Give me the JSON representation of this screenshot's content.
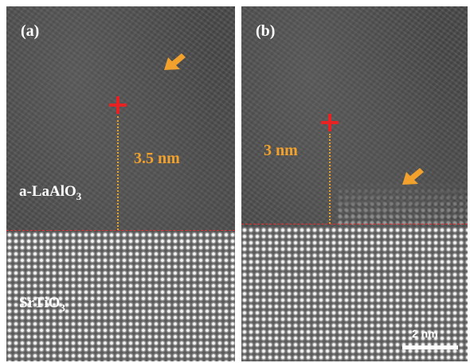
{
  "panels": [
    {
      "label": "(a)",
      "thickness": "3.5 nm",
      "layer_label_main": "a-LaAlO",
      "layer_label_sub": "3",
      "substrate_label_main": "SrTiO",
      "substrate_label_sub": "3"
    },
    {
      "label": "(b)",
      "thickness": "3 nm",
      "scale_bar": "2 nm"
    }
  ],
  "colors": {
    "marker": "#e82222",
    "annotation": "#f2a22c",
    "interface_line": "#e03030"
  },
  "icons": [
    "plus-marker-icon",
    "arrow-icon"
  ]
}
